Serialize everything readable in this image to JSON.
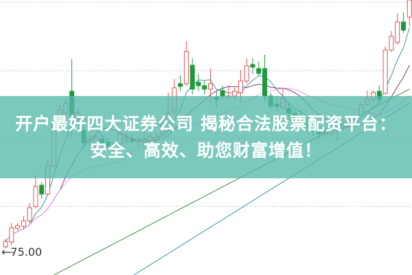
{
  "banner": {
    "line1": "开户最好四大证券公司 揭秘合法股票配资平台：",
    "line2": "安全、高效、助您财富增值！",
    "color": "#56b8aa"
  },
  "chart_data": {
    "type": "candlestick",
    "title": "",
    "price_marker": {
      "label": "75.00",
      "value": 75.0,
      "icon": "arrow-left-icon"
    },
    "grid": "horizontal-dotted",
    "up_color": "#e05050",
    "down_color": "#1e9a3c",
    "candles_ohlc": [
      [
        75.8,
        77.0,
        75.6,
        76.6
      ],
      [
        76.5,
        79.3,
        76.0,
        78.6
      ],
      [
        78.5,
        79.3,
        78.2,
        78.9
      ],
      [
        78.8,
        80.3,
        78.4,
        79.6
      ],
      [
        79.6,
        82.2,
        79.3,
        81.5
      ],
      [
        81.7,
        86.3,
        81.4,
        84.6
      ],
      [
        84.8,
        85.2,
        82.8,
        83.5
      ],
      [
        83.5,
        88.5,
        83.3,
        87.6
      ],
      [
        87.6,
        94.3,
        87.4,
        93.6
      ],
      [
        93.6,
        96.5,
        93.0,
        95.8
      ],
      [
        95.3,
        97.5,
        94.8,
        96.8
      ],
      [
        98.5,
        103.2,
        91.8,
        94.8
      ],
      [
        94.5,
        96.0,
        93.5,
        95.3
      ],
      [
        92.8,
        93.5,
        90.2,
        91.0
      ],
      [
        91.2,
        92.0,
        90.6,
        91.4
      ],
      [
        90.6,
        92.3,
        90.2,
        91.8
      ],
      [
        91.5,
        92.0,
        90.5,
        90.8
      ],
      [
        91.0,
        91.6,
        90.0,
        90.5
      ],
      [
        89.8,
        90.4,
        89.3,
        90.0
      ],
      [
        90.8,
        93.0,
        90.5,
        92.3
      ],
      [
        91.5,
        92.5,
        91.0,
        91.8
      ],
      [
        91.5,
        92.2,
        90.8,
        91.3
      ],
      [
        91.2,
        92.0,
        90.6,
        91.4
      ],
      [
        91.0,
        93.3,
        90.0,
        91.3
      ],
      [
        91.3,
        92.2,
        91.0,
        91.8
      ],
      [
        91.5,
        92.5,
        91.0,
        91.8
      ],
      [
        92.2,
        94.5,
        92.0,
        93.8
      ],
      [
        93.3,
        98.3,
        93.0,
        95.3
      ],
      [
        95.5,
        100.3,
        95.2,
        99.0
      ],
      [
        99.6,
        100.8,
        98.5,
        99.2
      ],
      [
        99.6,
        105.8,
        99.3,
        104.3
      ],
      [
        102.3,
        103.3,
        98.0,
        98.8
      ],
      [
        99.8,
        101.0,
        98.5,
        99.3
      ],
      [
        99.3,
        100.0,
        98.0,
        98.8
      ],
      [
        98.8,
        101.8,
        96.8,
        99.6
      ],
      [
        97.6,
        98.5,
        96.0,
        97.3
      ],
      [
        98.6,
        99.3,
        97.3,
        97.8
      ],
      [
        97.6,
        99.3,
        97.3,
        97.8
      ],
      [
        97.8,
        99.0,
        97.3,
        98.5
      ],
      [
        98.3,
        101.6,
        96.8,
        100.0
      ],
      [
        100.0,
        103.3,
        99.6,
        102.2
      ],
      [
        102.4,
        103.3,
        101.0,
        102.0
      ],
      [
        101.8,
        102.8,
        100.8,
        101.1
      ],
      [
        101.8,
        103.8,
        97.0,
        97.8
      ],
      [
        97.8,
        98.3,
        95.8,
        96.3
      ],
      [
        96.6,
        97.8,
        95.6,
        96.3
      ],
      [
        96.1,
        99.0,
        95.8,
        97.5
      ],
      [
        96.0,
        96.8,
        94.3,
        95.3
      ],
      [
        95.3,
        95.8,
        93.8,
        94.3
      ],
      [
        94.3,
        95.8,
        93.0,
        94.0
      ],
      [
        93.6,
        94.5,
        92.5,
        93.3
      ],
      [
        93.0,
        94.0,
        92.0,
        92.8
      ],
      [
        92.5,
        93.5,
        91.5,
        92.3
      ],
      [
        92.3,
        93.2,
        91.6,
        92.5
      ],
      [
        92.3,
        93.6,
        92.0,
        92.8
      ],
      [
        93.2,
        94.3,
        91.2,
        93.8
      ],
      [
        93.3,
        94.5,
        92.8,
        93.6
      ],
      [
        93.8,
        95.0,
        93.2,
        94.3
      ],
      [
        94.3,
        95.3,
        93.8,
        94.6
      ],
      [
        95.0,
        97.0,
        94.8,
        96.5
      ],
      [
        96.6,
        98.6,
        96.3,
        97.4
      ],
      [
        97.3,
        98.6,
        96.8,
        98.3
      ],
      [
        98.5,
        99.3,
        96.8,
        97.3
      ],
      [
        98.2,
        105.0,
        98.0,
        104.5
      ],
      [
        104.5,
        107.3,
        104.2,
        106.5
      ],
      [
        105.6,
        109.8,
        105.3,
        108.6
      ],
      [
        108.6,
        110.0,
        107.0,
        107.4
      ],
      [
        109.3,
        112.0,
        108.0,
        111.8
      ]
    ],
    "moving_averages": [
      {
        "period": 5,
        "color": "#2f9aa0"
      },
      {
        "period": 10,
        "color": "#7a3a7a"
      },
      {
        "period": 20,
        "color": "#e59be5"
      }
    ],
    "long_trend_lines": [
      {
        "color": "#3a8a3a",
        "start": 68.0,
        "end": 98.8
      },
      {
        "color": "#3a8fa8",
        "start": 60.0,
        "end": 96.8
      }
    ]
  }
}
